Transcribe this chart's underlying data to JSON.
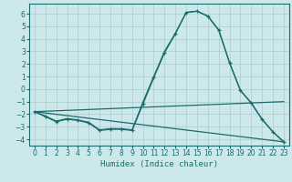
{
  "title": "",
  "xlabel": "Humidex (Indice chaleur)",
  "bg_color": "#cde8ea",
  "grid_color": "#aaccce",
  "line_color": "#1a6b6b",
  "xlim": [
    -0.5,
    23.5
  ],
  "ylim": [
    -4.5,
    6.8
  ],
  "yticks": [
    -4,
    -3,
    -2,
    -1,
    0,
    1,
    2,
    3,
    4,
    5,
    6
  ],
  "xticks": [
    0,
    1,
    2,
    3,
    4,
    5,
    6,
    7,
    8,
    9,
    10,
    11,
    12,
    13,
    14,
    15,
    16,
    17,
    18,
    19,
    20,
    21,
    22,
    23
  ],
  "line1_x": [
    0,
    1,
    2,
    3,
    4,
    5,
    6,
    7,
    8,
    9,
    10,
    11,
    12,
    13,
    14,
    15,
    16,
    17,
    18,
    19,
    20,
    21,
    22,
    23
  ],
  "line1_y": [
    -1.8,
    -2.2,
    -2.6,
    -2.4,
    -2.5,
    -2.7,
    -3.3,
    -3.2,
    -3.2,
    -3.3,
    -1.2,
    0.9,
    2.9,
    4.4,
    6.1,
    6.2,
    5.8,
    4.7,
    2.1,
    -0.1,
    -1.1,
    -2.4,
    -3.4,
    -4.2
  ],
  "line2_x": [
    0,
    23
  ],
  "line2_y": [
    -1.8,
    -1.0
  ],
  "line3_x": [
    0,
    23
  ],
  "line3_y": [
    -1.8,
    -4.2
  ],
  "line4_x": [
    0,
    1,
    2,
    3,
    4,
    5,
    6,
    7,
    8,
    9,
    10,
    11,
    12,
    13,
    14,
    15,
    16,
    17,
    18,
    19,
    20,
    21,
    22,
    23
  ],
  "line4_y": [
    -1.8,
    -2.15,
    -2.55,
    -2.35,
    -2.45,
    -2.65,
    -3.25,
    -3.15,
    -3.15,
    -3.25,
    -1.05,
    1.0,
    3.0,
    4.45,
    6.1,
    6.2,
    5.8,
    4.7,
    2.1,
    -0.1,
    -1.1,
    -2.4,
    -3.4,
    -4.2
  ]
}
